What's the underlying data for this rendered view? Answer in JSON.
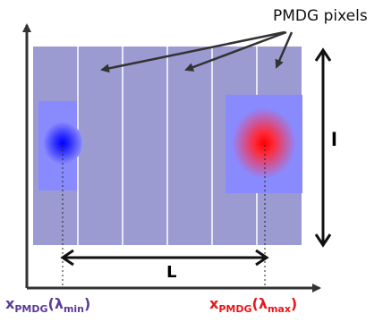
{
  "labels": {
    "pixels_caption": "PMDG pixels",
    "length_L": "L",
    "length_l": "l"
  },
  "x_min_label": {
    "main": "x",
    "main_sub": "PMDG",
    "func": "(λ",
    "func_sub": "min",
    "close": ")"
  },
  "x_max_label": {
    "main": "x",
    "main_sub": "PMDG",
    "func": "(λ",
    "func_sub": "max",
    "close": ")"
  },
  "colors": {
    "pixel_fill": "#9b9bd2",
    "pixel_divider": "#ffffff",
    "blob_min_core": "#0000ff",
    "blob_max_core": "#ff0000",
    "blob_background": "#8a8aff",
    "x_min_text": "#5a3b96",
    "x_max_text": "#e8161b"
  },
  "pixel_count": 6
}
